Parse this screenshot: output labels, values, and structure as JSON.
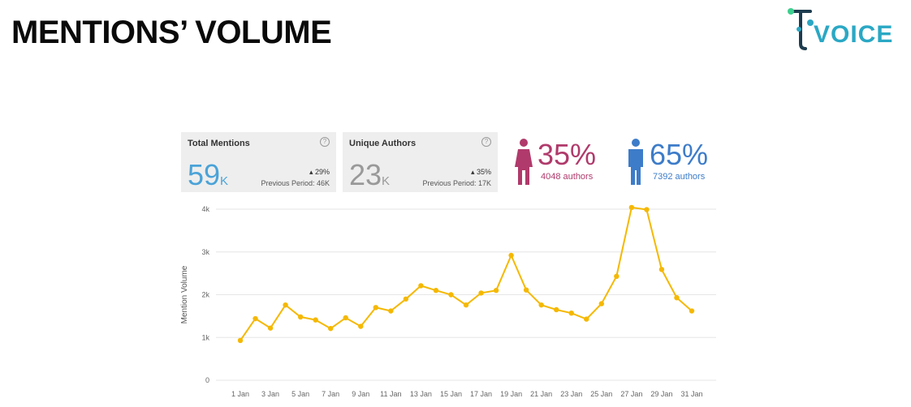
{
  "page": {
    "title": "MENTIONS’ VOLUME"
  },
  "logo": {
    "text": "VOICE",
    "colors": {
      "primary": "#2aa8c4",
      "dark": "#1d3c4f",
      "green": "#3ccf8e"
    }
  },
  "cards": [
    {
      "title": "Total Mentions",
      "value": "59",
      "unit": "K",
      "change": "29%",
      "previous": "Previous Period: 46K",
      "value_color": "#4aa3d8"
    },
    {
      "title": "Unique Authors",
      "value": "23",
      "unit": "K",
      "change": "35%",
      "previous": "Previous Period: 17K",
      "value_color": "#999999"
    }
  ],
  "gender": {
    "female": {
      "icon": "female-icon",
      "percent": "35%",
      "authors": "4048 authors",
      "color": "#b03a6b"
    },
    "male": {
      "icon": "male-icon",
      "percent": "65%",
      "authors": "7392 authors",
      "color": "#3d7cc9"
    }
  },
  "chart_data": {
    "type": "line",
    "ylabel": "Mention Volume",
    "ytick_labels": [
      "0",
      "1k",
      "2k",
      "3k",
      "4k"
    ],
    "ylim": [
      0,
      4000
    ],
    "x_ticks": [
      "1 Jan",
      "3 Jan",
      "5 Jan",
      "7 Jan",
      "9 Jan",
      "11 Jan",
      "13 Jan",
      "15 Jan",
      "17 Jan",
      "19 Jan",
      "21 Jan",
      "23 Jan",
      "25 Jan",
      "27 Jan",
      "29 Jan",
      "31 Jan"
    ],
    "x": [
      1,
      2,
      3,
      4,
      5,
      6,
      7,
      8,
      9,
      10,
      11,
      12,
      13,
      14,
      15,
      16,
      17,
      18,
      19,
      20,
      21,
      22,
      23,
      24,
      25,
      26,
      27,
      28,
      29,
      30,
      31
    ],
    "values": [
      930,
      1440,
      1220,
      1760,
      1480,
      1410,
      1210,
      1460,
      1260,
      1700,
      1620,
      1900,
      2210,
      2100,
      2000,
      1760,
      2040,
      2100,
      2920,
      2110,
      1760,
      1650,
      1570,
      1430,
      1790,
      2430,
      4040,
      3990,
      2590,
      1930,
      1620
    ],
    "line_color": "#f5b800",
    "grid": true
  }
}
